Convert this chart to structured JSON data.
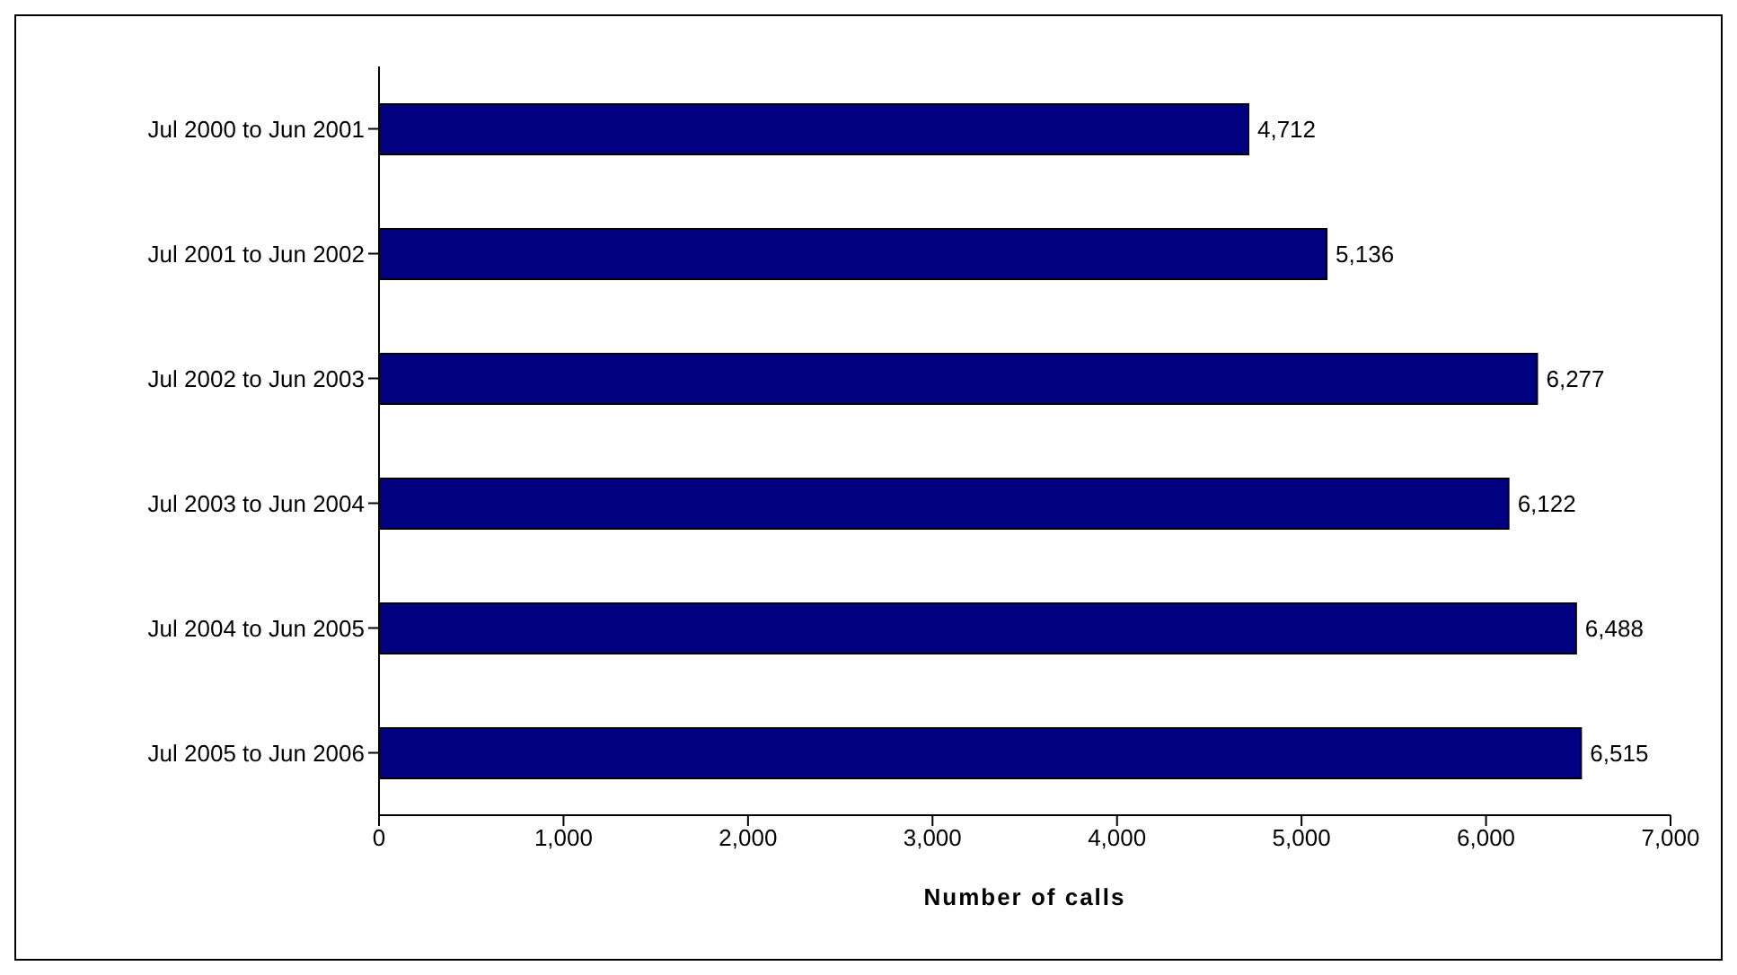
{
  "chart_data": {
    "type": "bar",
    "orientation": "horizontal",
    "xlabel": "Number of calls",
    "categories": [
      "Jul 2000 to Jun 2001",
      "Jul 2001 to Jun 2002",
      "Jul 2002 to Jun 2003",
      "Jul 2003 to Jun 2004",
      "Jul 2004 to Jun 2005",
      "Jul 2005 to Jun 2006"
    ],
    "values": [
      4712,
      5136,
      6277,
      6122,
      6488,
      6515
    ],
    "value_labels": [
      "4,712",
      "5,136",
      "6,277",
      "6,122",
      "6,488",
      "6,515"
    ],
    "color": "#000080",
    "xlim": [
      0,
      7000
    ],
    "xticks": [
      0,
      {
        "value": 1000,
        "label": "1,000"
      },
      {
        "value": 2000,
        "label": "2,000"
      },
      {
        "value": 3000,
        "label": "3,000"
      },
      {
        "value": 4000,
        "label": "4,000"
      },
      {
        "value": 5000,
        "label": "5,000"
      },
      {
        "value": 6000,
        "label": "6,000"
      },
      {
        "value": 7000,
        "label": "7,000"
      }
    ],
    "grid": false,
    "legend": false
  }
}
